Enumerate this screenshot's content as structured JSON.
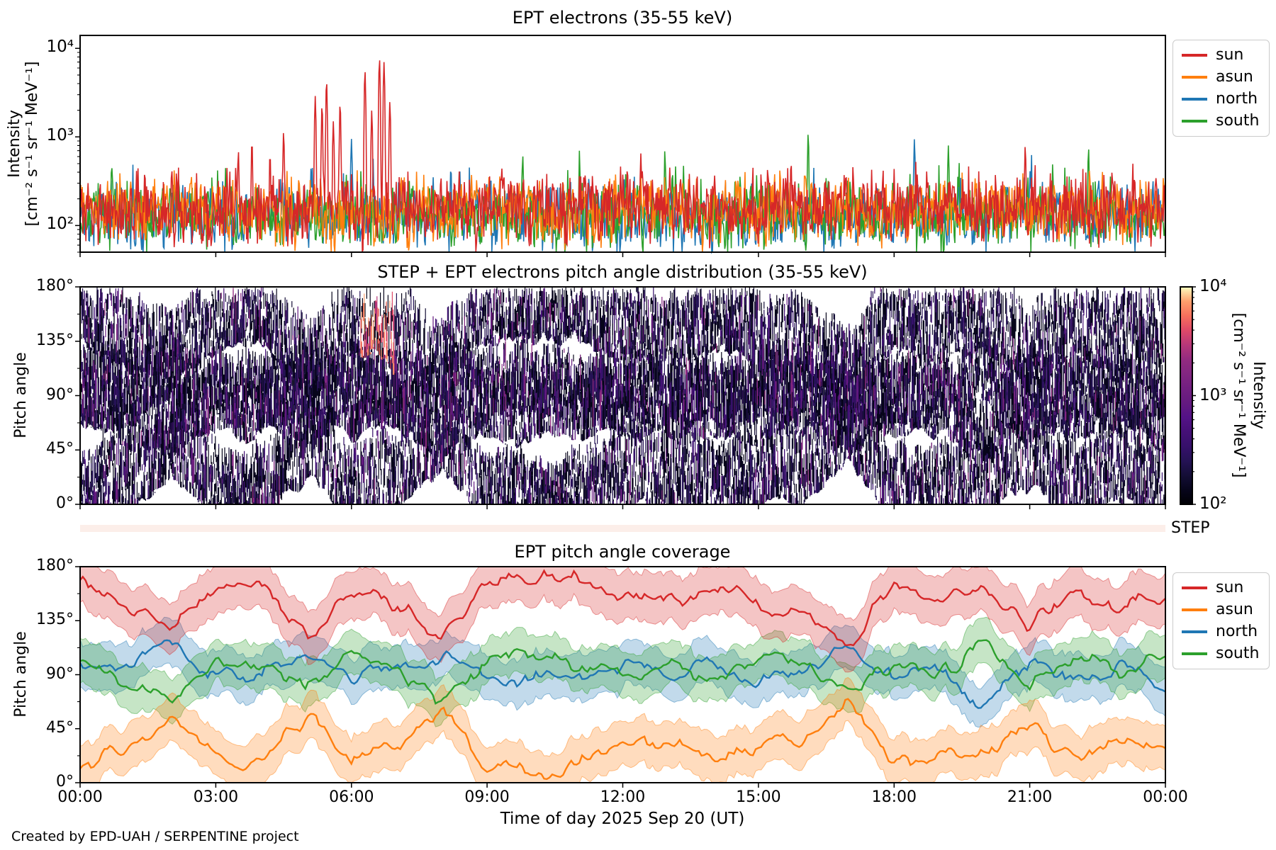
{
  "figure": {
    "background": "#ffffff",
    "footer": "Created by EPD-UAH / SERPENTINE project",
    "xlabel": "Time of day 2025 Sep 20 (UT)",
    "xtick_labels": [
      "00:00",
      "03:00",
      "06:00",
      "09:00",
      "12:00",
      "15:00",
      "18:00",
      "21:00",
      "00:00"
    ],
    "xtick_hours": [
      0,
      3,
      6,
      9,
      12,
      15,
      18,
      21,
      24
    ],
    "step_label": "STEP",
    "step_strip_color": "#fceee9"
  },
  "colors": {
    "sun": "#d62728",
    "asun": "#ff7f0e",
    "north": "#1f77b4",
    "south": "#2ca02c",
    "frame": "#000000"
  },
  "chart_data": [
    {
      "id": "ept_electrons",
      "type": "line",
      "title": "EPT electrons (35-55 keV)",
      "ylabel": "Intensity",
      "ylabel_units": "[cm⁻² s⁻¹ sr⁻¹ MeV⁻¹]",
      "yscale": "log",
      "ylim": [
        50,
        14000
      ],
      "yticks": [
        {
          "label": "10²",
          "value": 100
        },
        {
          "label": "10³",
          "value": 1000
        },
        {
          "label": "10⁴",
          "value": 10000
        }
      ],
      "xlim_hours": [
        0,
        24
      ],
      "legend": [
        "sun",
        "asun",
        "north",
        "south"
      ],
      "series": [
        {
          "name": "sun",
          "color": "#d62728",
          "baseline": [
            60,
            450
          ],
          "spikes_t_hours": [
            3.5,
            3.8,
            4.2,
            4.5,
            5.2,
            5.35,
            5.45,
            5.6,
            5.75,
            6.3,
            6.45,
            6.62,
            6.72,
            6.85,
            12.4,
            20.9
          ],
          "spikes_value": [
            700,
            900,
            650,
            1150,
            2900,
            2300,
            4300,
            1500,
            2400,
            5600,
            2000,
            7600,
            7000,
            2500,
            650,
            800
          ]
        },
        {
          "name": "asun",
          "color": "#ff7f0e",
          "baseline": [
            60,
            430
          ],
          "spikes_t_hours": [],
          "spikes_value": []
        },
        {
          "name": "north",
          "color": "#1f77b4",
          "baseline": [
            60,
            520
          ],
          "spikes_t_hours": [
            6.0,
            18.45
          ],
          "spikes_value": [
            950,
            950
          ]
        },
        {
          "name": "south",
          "color": "#2ca02c",
          "baseline": [
            60,
            550
          ],
          "spikes_t_hours": [
            16.1,
            19.2,
            22.3
          ],
          "spikes_value": [
            1100,
            800,
            750
          ]
        }
      ]
    },
    {
      "id": "pad_heatmap",
      "type": "heatmap",
      "title": "STEP + EPT electrons pitch angle distribution (35-55 keV)",
      "ylabel": "Pitch angle",
      "ylim_deg": [
        0,
        180
      ],
      "yticks": [
        {
          "label": "0°",
          "deg": 0
        },
        {
          "label": "45°",
          "deg": 45
        },
        {
          "label": "90°",
          "deg": 90
        },
        {
          "label": "135°",
          "deg": 135
        },
        {
          "label": "180°",
          "deg": 180
        }
      ],
      "colorbar": {
        "label": "Intensity",
        "label_units": "[cm⁻² s⁻¹ sr⁻¹ MeV⁻¹]",
        "ticks": [
          {
            "label": "10²",
            "value": 100
          },
          {
            "label": "10³",
            "value": 1000
          },
          {
            "label": "10⁴",
            "value": 10000
          }
        ],
        "colormap": "magma",
        "vmin": 100,
        "vmax": 10000
      },
      "palette": [
        "#000004",
        "#07051b",
        "#140e36",
        "#251255",
        "#36106b",
        "#451077",
        "#541287",
        "#641a80",
        "#721f81",
        "#822681",
        "#932b80",
        "#b73779",
        "#de4968",
        "#f76f5c",
        "#fe9f6d",
        "#fcfdbf"
      ],
      "event": {
        "t_hours": [
          6.2,
          6.95
        ],
        "pitch_deg": [
          138,
          180
        ]
      }
    },
    {
      "id": "coverage",
      "type": "line",
      "title": "EPT pitch angle coverage",
      "ylabel": "Pitch angle",
      "ylim_deg": [
        0,
        180
      ],
      "yticks": [
        {
          "label": "0°",
          "deg": 0
        },
        {
          "label": "45°",
          "deg": 45
        },
        {
          "label": "90°",
          "deg": 90
        },
        {
          "label": "135°",
          "deg": 135
        },
        {
          "label": "180°",
          "deg": 180
        }
      ],
      "legend": [
        "sun",
        "asun",
        "north",
        "south"
      ],
      "anchor_hours": [
        0,
        1,
        2,
        3,
        4,
        5,
        6,
        7,
        8,
        9,
        10,
        11,
        12,
        13,
        14,
        15,
        16,
        17,
        18,
        19,
        20,
        21,
        22,
        23,
        24
      ],
      "series": [
        {
          "name": "sun",
          "color": "#d62728",
          "band_halfwidth_deg": 17,
          "center_deg": [
            168,
            150,
            128,
            162,
            166,
            122,
            158,
            150,
            118,
            170,
            172,
            168,
            152,
            148,
            162,
            150,
            142,
            112,
            168,
            152,
            158,
            132,
            160,
            148,
            156
          ]
        },
        {
          "name": "asun",
          "color": "#ff7f0e",
          "band_halfwidth_deg": 16,
          "center_deg": [
            14,
            32,
            54,
            20,
            15,
            58,
            24,
            32,
            62,
            12,
            9,
            13,
            29,
            33,
            19,
            31,
            40,
            68,
            13,
            29,
            23,
            49,
            21,
            33,
            25
          ]
        },
        {
          "name": "north",
          "color": "#1f77b4",
          "band_halfwidth_deg": 15,
          "center_deg": [
            92,
            99,
            116,
            88,
            93,
            104,
            86,
            95,
            108,
            88,
            86,
            89,
            96,
            90,
            99,
            86,
            93,
            112,
            88,
            96,
            62,
            99,
            86,
            96,
            80
          ]
        },
        {
          "name": "south",
          "color": "#2ca02c",
          "band_halfwidth_deg": 15,
          "center_deg": [
            104,
            81,
            67,
            103,
            98,
            76,
            108,
            92,
            71,
            102,
            107,
            101,
            92,
            96,
            88,
            104,
            98,
            73,
            102,
            88,
            118,
            82,
            104,
            88,
            110
          ]
        }
      ]
    }
  ]
}
